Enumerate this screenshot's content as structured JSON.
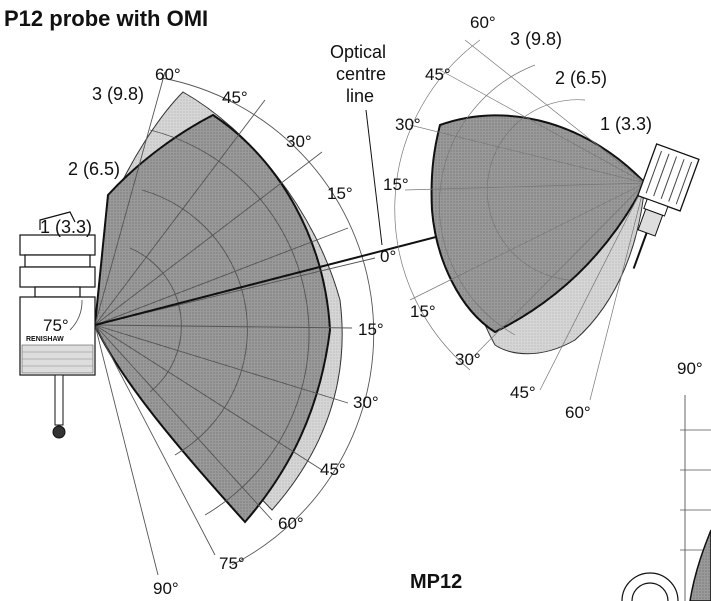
{
  "title": "P12 probe with OMI",
  "footer_label": "MP12",
  "optical_centre_label": [
    "Optical",
    "centre",
    "line"
  ],
  "left_diagram": {
    "range_labels": [
      "1 (3.3)",
      "2 (6.5)",
      "3 (9.8)"
    ],
    "angle_labels_upper": [
      "60°",
      "45°",
      "30°",
      "15°"
    ],
    "centre_angle": "0°",
    "angle_labels_lower": [
      "15°",
      "30°",
      "45°",
      "60°",
      "75°",
      "90°"
    ],
    "probe_angle": "75°",
    "brand": "RENISHAW"
  },
  "right_diagram": {
    "range_labels": [
      "1 (3.3)",
      "2 (6.5)",
      "3 (9.8)"
    ],
    "angle_labels_upper": [
      "60°",
      "45°",
      "30°",
      "15°"
    ],
    "angle_labels_lower": [
      "15°",
      "30°",
      "45°",
      "60°"
    ]
  },
  "bottom_right_diagram": {
    "angle_label": "90°"
  },
  "colors": {
    "envelope_dark": "#8a8a8a",
    "envelope_light": "#c9c9c9",
    "line": "#111111"
  }
}
